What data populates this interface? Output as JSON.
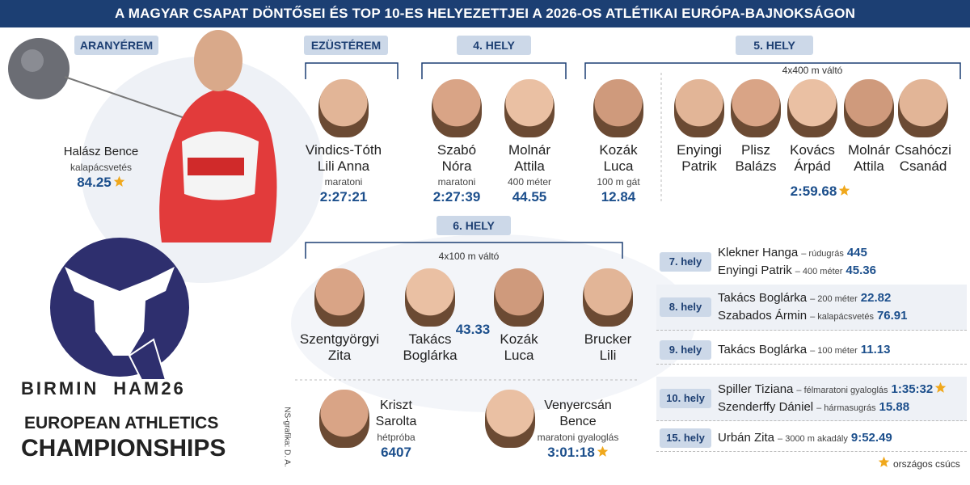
{
  "header": {
    "title": "A MAGYAR CSAPAT DÖNTŐSEI ÉS TOP 10-ES HELYEZETTJEI A 2026-OS ATLÉTIKAI EURÓPA-BAJNOKSÁGON"
  },
  "gold": {
    "label": "ARANYÉREM",
    "athletes": [
      {
        "name": [
          "Halász Bence"
        ],
        "event": "kalapácsvetés",
        "result": "84.25",
        "record": true
      }
    ]
  },
  "silver": {
    "label": "EZÜSTÉREM",
    "athletes": [
      {
        "name": [
          "Vindics-Tóth",
          "Lili Anna"
        ],
        "event": "maratoni",
        "result": "2:27:21"
      }
    ]
  },
  "place4": {
    "label": "4. HELY",
    "athletes": [
      {
        "name": [
          "Szabó",
          "Nóra"
        ],
        "event": "maratoni",
        "result": "2:27:39"
      },
      {
        "name": [
          "Molnár",
          "Attila"
        ],
        "event": "400 méter",
        "result": "44.55"
      }
    ]
  },
  "place5": {
    "label": "5. HELY",
    "athletes": [
      {
        "name": [
          "Kozák",
          "Luca"
        ],
        "event": "100 m gát",
        "result": "12.84"
      }
    ],
    "relay": {
      "label": "4x400 m váltó",
      "members": [
        [
          "Enyingi",
          "Patrik"
        ],
        [
          "Plisz",
          "Balázs"
        ],
        [
          "Kovács",
          "Árpád"
        ],
        [
          "Molnár",
          "Attila"
        ],
        [
          "Csahóczi",
          "Csanád"
        ]
      ],
      "result": "2:59.68",
      "record": true
    }
  },
  "place6": {
    "label": "6. HELY",
    "relay": {
      "label": "4x100 m váltó",
      "members": [
        [
          "Szentgyörgyi",
          "Zita"
        ],
        [
          "Takács",
          "Boglárka"
        ],
        [
          "Kozák",
          "Luca"
        ],
        [
          "Brucker",
          "Lili"
        ]
      ],
      "result": "43.33"
    },
    "athletes": [
      {
        "name": [
          "Kriszt",
          "Sarolta"
        ],
        "event": "hétpróba",
        "result": "6407"
      },
      {
        "name": [
          "Venyercsán",
          "Bence"
        ],
        "event": "maratoni gyaloglás",
        "result": "3:01:18",
        "record": true
      }
    ]
  },
  "other_places": [
    {
      "label": "7. hely",
      "entries": [
        {
          "name": "Klekner Hanga",
          "event": "– rúdugrás",
          "result": "445"
        },
        {
          "name": "Enyingi Patrik",
          "event": "– 400 méter",
          "result": "45.36"
        }
      ]
    },
    {
      "label": "8. hely",
      "entries": [
        {
          "name": "Takács Boglárka",
          "event": "– 200 méter",
          "result": "22.82"
        },
        {
          "name": "Szabados Ármin",
          "event": "– kalapácsvetés",
          "result": "76.91"
        }
      ]
    },
    {
      "label": "9. hely",
      "entries": [
        {
          "name": "Takács Boglárka",
          "event": "– 100 méter",
          "result": "11.13"
        }
      ]
    },
    {
      "label": "10. hely",
      "entries": [
        {
          "name": "Spiller Tiziana",
          "event": "– félmaratoni gyaloglás",
          "result": "1:35:32",
          "record": true
        },
        {
          "name": "Szenderffy Dániel",
          "event": "– hármasugrás",
          "result": "15.88"
        }
      ]
    },
    {
      "label": "15. hely",
      "entries": [
        {
          "name": "Urbán Zita",
          "event": "– 3000 m akadály",
          "result": "9:52.49"
        }
      ]
    }
  ],
  "legend": {
    "label": "országos csúcs"
  },
  "credit": "NS-grafika: D. A.",
  "logo": {
    "city_start": "BIRMIN",
    "city_end": "HAM26",
    "org": "EUROPEAN ATHLETICS",
    "event": "CHAMPIONSHIPS"
  }
}
